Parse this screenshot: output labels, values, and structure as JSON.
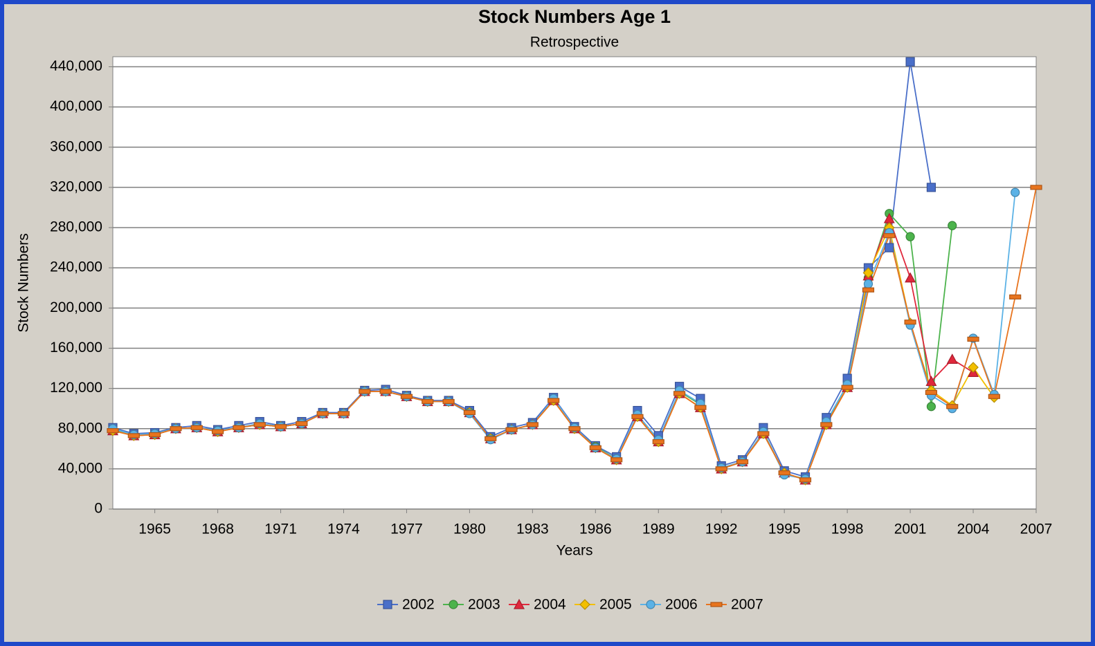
{
  "chart_data": {
    "type": "line",
    "title": "Stock Numbers Age 1",
    "subtitle": "Retrospective",
    "x_label": "Years",
    "y_label": "Stock Numbers",
    "x": [
      1963,
      1964,
      1965,
      1966,
      1967,
      1968,
      1969,
      1970,
      1971,
      1972,
      1973,
      1974,
      1975,
      1976,
      1977,
      1978,
      1979,
      1980,
      1981,
      1982,
      1983,
      1984,
      1985,
      1986,
      1987,
      1988,
      1989,
      1990,
      1991,
      1992,
      1993,
      1994,
      1995,
      1996,
      1997,
      1998,
      1999,
      2000,
      2001,
      2002,
      2003,
      2004,
      2005,
      2006,
      2007
    ],
    "xlim": [
      1963,
      2007
    ],
    "xticks": [
      1965,
      1968,
      1971,
      1974,
      1977,
      1980,
      1983,
      1986,
      1989,
      1992,
      1995,
      1998,
      2001,
      2004,
      2007
    ],
    "ylim": [
      0,
      450000
    ],
    "yticks": [
      0,
      {
        "value": 40000,
        "label": "40,000"
      },
      {
        "value": 80000,
        "label": "80,000"
      },
      {
        "value": 120000,
        "label": "120,000"
      },
      {
        "value": 160000,
        "label": "160,000"
      },
      {
        "value": 200000,
        "label": "200,000"
      },
      {
        "value": 240000,
        "label": "240,000"
      },
      {
        "value": 280000,
        "label": "280,000"
      },
      {
        "value": 320000,
        "label": "320,000"
      },
      {
        "value": 360000,
        "label": "360,000"
      },
      {
        "value": 400000,
        "label": "400,000"
      },
      {
        "value": 440000,
        "label": "440,000"
      }
    ],
    "grid": true,
    "legend": "bottom",
    "series": [
      {
        "name": "2002",
        "color": "#4a6fc9",
        "marker": "square",
        "values": [
          81000,
          75000,
          76000,
          81000,
          83000,
          79000,
          83000,
          87000,
          83000,
          87000,
          96000,
          96000,
          118000,
          119000,
          113000,
          108000,
          108000,
          98000,
          72000,
          81000,
          86000,
          111000,
          82000,
          63000,
          52000,
          98000,
          73000,
          122000,
          110000,
          43000,
          49000,
          81000,
          38000,
          32000,
          91000,
          130000,
          240000,
          260000,
          445000,
          320000,
          null,
          null,
          null,
          null,
          null
        ]
      },
      {
        "name": "2003",
        "color": "#4cb34c",
        "marker": "circle",
        "values": [
          79000,
          73000,
          75000,
          80000,
          81000,
          78000,
          81000,
          85000,
          82000,
          85000,
          95000,
          95000,
          117000,
          117000,
          112000,
          107000,
          107000,
          96000,
          70000,
          79000,
          84000,
          109000,
          80000,
          62000,
          50000,
          93000,
          69000,
          117000,
          104000,
          41000,
          47000,
          77000,
          35000,
          30000,
          86000,
          124000,
          230000,
          294000,
          271000,
          102000,
          282000,
          null,
          null,
          null,
          null
        ]
      },
      {
        "name": "2004",
        "color": "#e0283c",
        "marker": "triangle",
        "values": [
          78000,
          73000,
          74000,
          80000,
          81000,
          77000,
          81000,
          84000,
          82000,
          85000,
          95000,
          95000,
          117000,
          117000,
          112000,
          107000,
          107000,
          96000,
          70000,
          79000,
          84000,
          108000,
          80000,
          61000,
          49000,
          92000,
          67000,
          115000,
          101000,
          40000,
          47000,
          75000,
          36000,
          29000,
          84000,
          121000,
          232000,
          289000,
          230000,
          127000,
          149000,
          136000,
          null,
          null,
          null
        ]
      },
      {
        "name": "2005",
        "color": "#f2bf00",
        "marker": "diamond",
        "values": [
          78000,
          73000,
          74000,
          80000,
          81000,
          77000,
          81000,
          84000,
          82000,
          85000,
          95000,
          95000,
          117000,
          117000,
          112000,
          107000,
          107000,
          96000,
          70000,
          79000,
          84000,
          108000,
          80000,
          61000,
          49000,
          92000,
          67000,
          115000,
          101000,
          40000,
          47000,
          75000,
          36000,
          29000,
          84000,
          121000,
          235000,
          280000,
          185000,
          118000,
          103000,
          141000,
          111000,
          null,
          null
        ]
      },
      {
        "name": "2006",
        "color": "#5bb2e6",
        "marker": "circle",
        "values": [
          80000,
          74000,
          75000,
          80000,
          81000,
          78000,
          81000,
          85000,
          82000,
          85000,
          95000,
          95000,
          117000,
          117000,
          112000,
          107000,
          107000,
          95000,
          69000,
          79000,
          84000,
          110000,
          81000,
          61000,
          50000,
          94000,
          69000,
          118000,
          105000,
          41000,
          47000,
          77000,
          34000,
          30000,
          87000,
          124000,
          224000,
          275000,
          183000,
          113000,
          100000,
          170000,
          114000,
          315000,
          null
        ]
      },
      {
        "name": "2007",
        "color": "#e8741e",
        "marker": "dash",
        "values": [
          78000,
          73000,
          74000,
          80000,
          81000,
          77000,
          81000,
          84000,
          82000,
          85000,
          95000,
          95000,
          117000,
          117000,
          112000,
          107000,
          107000,
          96000,
          70000,
          79000,
          84000,
          108000,
          80000,
          61000,
          49000,
          92000,
          67000,
          115000,
          101000,
          40000,
          47000,
          75000,
          36000,
          29000,
          84000,
          121000,
          218000,
          272000,
          186000,
          116000,
          102000,
          169000,
          112000,
          211000,
          320000
        ]
      }
    ]
  }
}
